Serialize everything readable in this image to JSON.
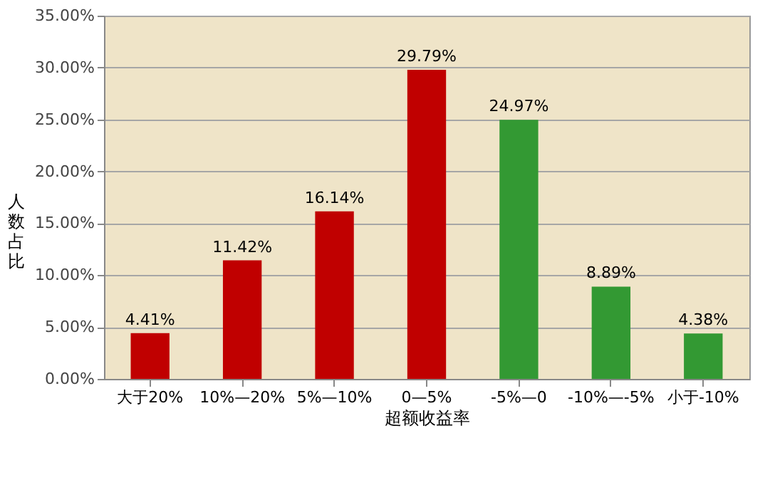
{
  "chart_data": {
    "type": "bar",
    "xlabel": "超额收益率",
    "ylabel": "人数占比",
    "categories": [
      "大于20%",
      "10%—20%",
      "5%—10%",
      "0—5%",
      "-5%—0",
      "-10%—-5%",
      "小于-10%"
    ],
    "values": [
      4.41,
      11.42,
      16.14,
      29.79,
      24.97,
      8.89,
      4.38
    ],
    "colors": [
      "#c00000",
      "#c00000",
      "#c00000",
      "#c00000",
      "#339933",
      "#339933",
      "#339933"
    ],
    "value_labels": [
      "4.41%",
      "11.42%",
      "16.14%",
      "29.79%",
      "24.97%",
      "8.89%",
      "4.38%"
    ],
    "ylim": [
      0,
      35
    ],
    "yticks": [
      {
        "value": 0,
        "label": "0.00%"
      },
      {
        "value": 5,
        "label": "5.00%"
      },
      {
        "value": 10,
        "label": "10.00%"
      },
      {
        "value": 15,
        "label": "15.00%"
      },
      {
        "value": 20,
        "label": "20.00%"
      },
      {
        "value": 25,
        "label": "25.00%"
      },
      {
        "value": 30,
        "label": "30.00%"
      },
      {
        "value": 35,
        "label": "35.00%"
      }
    ],
    "grid": "y"
  }
}
